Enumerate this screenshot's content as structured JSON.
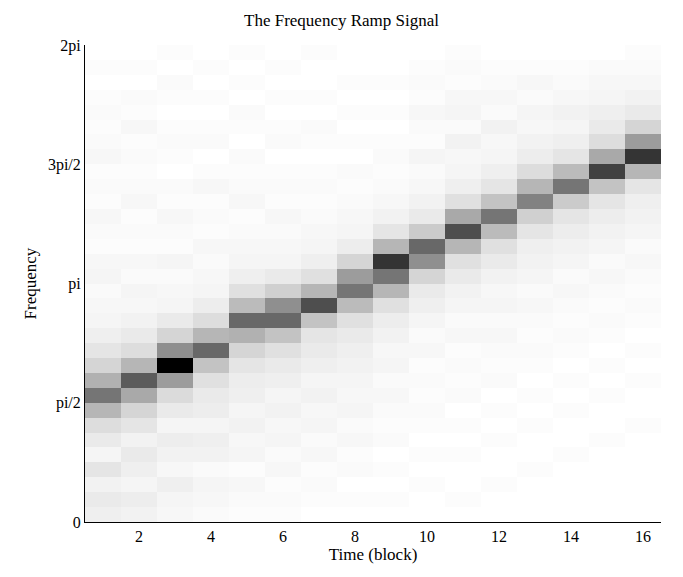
{
  "chart_data": {
    "type": "heatmap",
    "title": "The Frequency Ramp Signal",
    "x_label": "Time (block)",
    "y_label": "Frequency",
    "x": [
      1,
      2,
      3,
      4,
      5,
      6,
      7,
      8,
      9,
      10,
      11,
      12,
      13,
      14,
      15,
      16
    ],
    "y": [
      0.0982,
      0.2945,
      0.4909,
      0.6872,
      0.8836,
      1.0799,
      1.2763,
      1.4726,
      1.669,
      1.8653,
      2.0617,
      2.258,
      2.4544,
      2.6507,
      2.8471,
      3.0434,
      3.2398,
      3.4361,
      3.6325,
      3.8288,
      4.0252,
      4.2215,
      4.4179,
      4.6142,
      4.8106,
      5.0069,
      5.2033,
      5.3996,
      5.596,
      5.7923,
      5.9887,
      6.185
    ],
    "z": [
      [
        0.08,
        0.1,
        0.07,
        0.12,
        0.06,
        0.1,
        0.15,
        0.3,
        0.55,
        0.32,
        0.18,
        0.12,
        0.08,
        0.06,
        0.05,
        0.04,
        0.06,
        0.05,
        0.03,
        0.04,
        0.05,
        0.03,
        0.04,
        0.03,
        0.05,
        0.04,
        0.03,
        0.04,
        0.03,
        0.02,
        0.03,
        0.02
      ],
      [
        0.07,
        0.09,
        0.06,
        0.08,
        0.1,
        0.07,
        0.12,
        0.18,
        0.35,
        0.65,
        0.3,
        0.15,
        0.1,
        0.07,
        0.05,
        0.06,
        0.04,
        0.05,
        0.03,
        0.04,
        0.03,
        0.05,
        0.04,
        0.03,
        0.04,
        0.03,
        0.05,
        0.03,
        0.04,
        0.02,
        0.03,
        0.02
      ],
      [
        0.05,
        0.06,
        0.08,
        0.05,
        0.07,
        0.09,
        0.06,
        0.1,
        0.16,
        0.4,
        1.0,
        0.45,
        0.18,
        0.1,
        0.06,
        0.05,
        0.04,
        0.06,
        0.03,
        0.04,
        0.05,
        0.03,
        0.04,
        0.02,
        0.03,
        0.04,
        0.03,
        0.02,
        0.03,
        0.04,
        0.02,
        0.03
      ],
      [
        0.04,
        0.05,
        0.06,
        0.04,
        0.07,
        0.08,
        0.06,
        0.09,
        0.1,
        0.14,
        0.25,
        0.6,
        0.3,
        0.15,
        0.09,
        0.06,
        0.05,
        0.04,
        0.05,
        0.03,
        0.04,
        0.03,
        0.05,
        0.03,
        0.02,
        0.04,
        0.03,
        0.02,
        0.03,
        0.02,
        0.03,
        0.02
      ],
      [
        0.03,
        0.04,
        0.05,
        0.03,
        0.06,
        0.05,
        0.07,
        0.06,
        0.08,
        0.09,
        0.12,
        0.18,
        0.32,
        0.6,
        0.28,
        0.14,
        0.08,
        0.06,
        0.05,
        0.04,
        0.03,
        0.05,
        0.04,
        0.03,
        0.04,
        0.02,
        0.03,
        0.04,
        0.02,
        0.03,
        0.02,
        0.03
      ],
      [
        0.03,
        0.04,
        0.03,
        0.05,
        0.04,
        0.06,
        0.05,
        0.07,
        0.06,
        0.08,
        0.1,
        0.14,
        0.25,
        0.6,
        0.45,
        0.2,
        0.1,
        0.06,
        0.05,
        0.04,
        0.05,
        0.03,
        0.04,
        0.03,
        0.02,
        0.04,
        0.03,
        0.02,
        0.03,
        0.02,
        0.03,
        0.02
      ],
      [
        0.02,
        0.03,
        0.04,
        0.03,
        0.05,
        0.04,
        0.06,
        0.05,
        0.07,
        0.06,
        0.08,
        0.1,
        0.12,
        0.25,
        0.7,
        0.3,
        0.14,
        0.08,
        0.06,
        0.05,
        0.04,
        0.03,
        0.04,
        0.03,
        0.02,
        0.03,
        0.04,
        0.02,
        0.03,
        0.02,
        0.02,
        0.03
      ],
      [
        0.02,
        0.03,
        0.02,
        0.04,
        0.03,
        0.05,
        0.04,
        0.06,
        0.05,
        0.06,
        0.07,
        0.08,
        0.1,
        0.14,
        0.28,
        0.55,
        0.4,
        0.18,
        0.09,
        0.06,
        0.05,
        0.04,
        0.03,
        0.04,
        0.02,
        0.03,
        0.02,
        0.03,
        0.02,
        0.03,
        0.02,
        0.02
      ],
      [
        0.02,
        0.03,
        0.02,
        0.03,
        0.02,
        0.04,
        0.03,
        0.04,
        0.05,
        0.04,
        0.06,
        0.05,
        0.07,
        0.09,
        0.14,
        0.3,
        0.55,
        0.8,
        0.3,
        0.12,
        0.07,
        0.05,
        0.04,
        0.03,
        0.04,
        0.03,
        0.02,
        0.03,
        0.02,
        0.03,
        0.02,
        0.02
      ],
      [
        0.02,
        0.02,
        0.03,
        0.02,
        0.03,
        0.02,
        0.03,
        0.04,
        0.03,
        0.04,
        0.03,
        0.05,
        0.04,
        0.06,
        0.08,
        0.1,
        0.18,
        0.45,
        0.6,
        0.22,
        0.1,
        0.07,
        0.05,
        0.04,
        0.06,
        0.03,
        0.04,
        0.05,
        0.03,
        0.04,
        0.03,
        0.02
      ],
      [
        0.02,
        0.03,
        0.02,
        0.02,
        0.03,
        0.02,
        0.03,
        0.02,
        0.04,
        0.03,
        0.04,
        0.03,
        0.05,
        0.04,
        0.06,
        0.07,
        0.1,
        0.14,
        0.3,
        0.7,
        0.35,
        0.14,
        0.08,
        0.06,
        0.05,
        0.07,
        0.04,
        0.06,
        0.05,
        0.03,
        0.04,
        0.03
      ],
      [
        0.02,
        0.02,
        0.03,
        0.02,
        0.02,
        0.03,
        0.02,
        0.03,
        0.02,
        0.04,
        0.03,
        0.04,
        0.05,
        0.04,
        0.06,
        0.05,
        0.07,
        0.1,
        0.14,
        0.28,
        0.55,
        0.25,
        0.12,
        0.08,
        0.06,
        0.05,
        0.07,
        0.04,
        0.05,
        0.04,
        0.03,
        0.02
      ],
      [
        0.02,
        0.02,
        0.02,
        0.03,
        0.02,
        0.02,
        0.03,
        0.02,
        0.03,
        0.02,
        0.03,
        0.04,
        0.03,
        0.04,
        0.05,
        0.04,
        0.06,
        0.07,
        0.08,
        0.12,
        0.2,
        0.5,
        0.3,
        0.15,
        0.09,
        0.07,
        0.05,
        0.06,
        0.04,
        0.05,
        0.03,
        0.02
      ],
      [
        0.02,
        0.02,
        0.02,
        0.02,
        0.03,
        0.02,
        0.02,
        0.03,
        0.02,
        0.03,
        0.02,
        0.03,
        0.04,
        0.03,
        0.04,
        0.05,
        0.04,
        0.06,
        0.07,
        0.09,
        0.12,
        0.22,
        0.55,
        0.28,
        0.12,
        0.08,
        0.06,
        0.07,
        0.05,
        0.04,
        0.03,
        0.02
      ],
      [
        0.02,
        0.02,
        0.02,
        0.02,
        0.02,
        0.03,
        0.02,
        0.02,
        0.03,
        0.02,
        0.03,
        0.02,
        0.03,
        0.04,
        0.03,
        0.04,
        0.05,
        0.04,
        0.06,
        0.07,
        0.09,
        0.12,
        0.25,
        0.75,
        0.35,
        0.15,
        0.1,
        0.08,
        0.06,
        0.05,
        0.04,
        0.02
      ],
      [
        0.02,
        0.02,
        0.02,
        0.02,
        0.02,
        0.02,
        0.03,
        0.02,
        0.02,
        0.03,
        0.02,
        0.03,
        0.02,
        0.03,
        0.04,
        0.03,
        0.04,
        0.05,
        0.04,
        0.06,
        0.07,
        0.08,
        0.12,
        0.3,
        0.8,
        0.4,
        0.18,
        0.1,
        0.07,
        0.05,
        0.04,
        0.03
      ]
    ],
    "xlim": [
      0.5,
      16.5
    ],
    "xticks": [
      2,
      4,
      6,
      8,
      10,
      12,
      14,
      16
    ],
    "ylim": [
      0,
      6.2832
    ],
    "yticks": [
      0,
      {
        "value": 1.5708,
        "label": "pi/2"
      },
      {
        "value": 3.1416,
        "label": "pi"
      },
      {
        "value": 4.7124,
        "label": "3pi/2"
      },
      {
        "value": 6.2832,
        "label": "2pi"
      }
    ],
    "grid": false
  }
}
